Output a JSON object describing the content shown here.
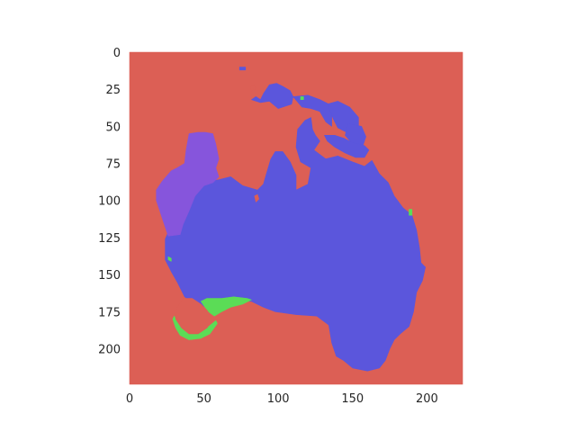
{
  "chart_data": {
    "type": "heatmap",
    "title": "",
    "xlabel": "",
    "ylabel": "",
    "xlim": [
      0,
      224
    ],
    "ylim": [
      224,
      0
    ],
    "x_ticks": [
      0,
      50,
      100,
      150,
      200
    ],
    "y_ticks": [
      0,
      25,
      50,
      75,
      100,
      125,
      150,
      175,
      200
    ],
    "grid": false,
    "legend": "none",
    "colors": {
      "background": "#dc5f55",
      "mainland": "#5b56dc",
      "west": "#8655dc",
      "southwest": "#5bdc56"
    },
    "regions": [
      {
        "class": "background",
        "color": "#dc5f55",
        "polygons": [
          [
            [
              0,
              0
            ],
            [
              224,
              0
            ],
            [
              224,
              224
            ],
            [
              0,
              224
            ]
          ]
        ]
      },
      {
        "class": "mainland",
        "color": "#5b56dc",
        "polygons": [
          [
            [
              35,
              97
            ],
            [
              50,
              88
            ],
            [
              60,
              86
            ],
            [
              68,
              84
            ],
            [
              76,
              90
            ],
            [
              86,
              93
            ],
            [
              90,
              89
            ],
            [
              92,
              82
            ],
            [
              95,
              72
            ],
            [
              98,
              67
            ],
            [
              103,
              67
            ],
            [
              108,
              74
            ],
            [
              112,
              83
            ],
            [
              112,
              93
            ],
            [
              120,
              89
            ],
            [
              122,
              78
            ],
            [
              115,
              74
            ],
            [
              112,
              64
            ],
            [
              113,
              52
            ],
            [
              118,
              46
            ],
            [
              122,
              44
            ],
            [
              123,
              52
            ],
            [
              125,
              56
            ],
            [
              128,
              60
            ],
            [
              124,
              66
            ],
            [
              132,
              72
            ],
            [
              140,
              70
            ],
            [
              150,
              74
            ],
            [
              158,
              77
            ],
            [
              163,
              73
            ],
            [
              168,
              82
            ],
            [
              174,
              88
            ],
            [
              178,
              97
            ],
            [
              184,
              105
            ],
            [
              190,
              110
            ],
            [
              193,
              120
            ],
            [
              195,
              132
            ],
            [
              196,
              142
            ],
            [
              199,
              145
            ],
            [
              197,
              154
            ],
            [
              193,
              162
            ],
            [
              191,
              175
            ],
            [
              188,
              185
            ],
            [
              182,
              190
            ],
            [
              178,
              194
            ],
            [
              175,
              200
            ],
            [
              172,
              208
            ],
            [
              168,
              213
            ],
            [
              160,
              215
            ],
            [
              150,
              213
            ],
            [
              144,
              208
            ],
            [
              139,
              205
            ],
            [
              136,
              196
            ],
            [
              134,
              184
            ],
            [
              126,
              178
            ],
            [
              112,
              177
            ],
            [
              98,
              175
            ],
            [
              90,
              172
            ],
            [
              82,
              168
            ],
            [
              68,
              167
            ],
            [
              58,
              167
            ],
            [
              53,
              171
            ],
            [
              47,
              172
            ],
            [
              37,
              165
            ],
            [
              32,
              155
            ],
            [
              28,
              148
            ],
            [
              24,
              140
            ],
            [
              24,
              126
            ],
            [
              30,
              112
            ],
            [
              36,
              100
            ]
          ],
          [
            [
              82,
              32
            ],
            [
              85,
              30
            ],
            [
              88,
              32
            ],
            [
              90,
              28
            ],
            [
              94,
              22
            ],
            [
              99,
              21
            ],
            [
              103,
              23
            ],
            [
              108,
              26
            ],
            [
              110,
              30
            ],
            [
              109,
              35
            ],
            [
              100,
              38
            ],
            [
              94,
              33
            ],
            [
              88,
              34
            ]
          ],
          [
            [
              110,
              30
            ],
            [
              120,
              29
            ],
            [
              128,
              32
            ],
            [
              134,
              35
            ],
            [
              136,
              41
            ],
            [
              136,
              50
            ],
            [
              132,
              47
            ],
            [
              128,
              40
            ],
            [
              122,
              38
            ],
            [
              116,
              37
            ]
          ],
          [
            [
              133,
              35
            ],
            [
              140,
              33
            ],
            [
              148,
              37
            ],
            [
              154,
              44
            ],
            [
              154,
              52
            ],
            [
              146,
              54
            ],
            [
              140,
              51
            ],
            [
              137,
              45
            ]
          ],
          [
            [
              147,
              48
            ],
            [
              156,
              50
            ],
            [
              159,
              57
            ],
            [
              157,
              63
            ],
            [
              150,
              62
            ],
            [
              145,
              56
            ]
          ],
          [
            [
              131,
              56
            ],
            [
              138,
              56
            ],
            [
              144,
              58
            ],
            [
              150,
              61
            ],
            [
              158,
              63
            ],
            [
              161,
              66
            ],
            [
              158,
              71
            ],
            [
              152,
              71
            ],
            [
              145,
              68
            ],
            [
              138,
              64
            ],
            [
              133,
              60
            ]
          ],
          [
            [
              74,
              10
            ],
            [
              78,
              10
            ],
            [
              78,
              12
            ],
            [
              74,
              12
            ]
          ]
        ]
      },
      {
        "class": "west",
        "color": "#8655dc",
        "polygons": [
          [
            [
              40,
              55
            ],
            [
              46,
              54
            ],
            [
              51,
              54
            ],
            [
              56,
              55
            ],
            [
              58,
              62
            ],
            [
              60,
              72
            ],
            [
              58,
              78
            ],
            [
              60,
              84
            ],
            [
              56,
              88
            ],
            [
              50,
              90
            ],
            [
              44,
              97
            ],
            [
              40,
              107
            ],
            [
              36,
              116
            ],
            [
              34,
              123
            ],
            [
              26,
              124
            ],
            [
              22,
              112
            ],
            [
              18,
              100
            ],
            [
              18,
              93
            ],
            [
              22,
              87
            ],
            [
              28,
              80
            ],
            [
              32,
              78
            ],
            [
              37,
              75
            ],
            [
              38,
              66
            ]
          ]
        ]
      },
      {
        "class": "southwest",
        "color": "#5bdc56",
        "polygons": [
          [
            [
              48,
              168
            ],
            [
              52,
              166
            ],
            [
              55,
              166
            ],
            [
              62,
              166
            ],
            [
              70,
              165
            ],
            [
              79,
              166
            ],
            [
              82,
              167
            ],
            [
              76,
              170
            ],
            [
              68,
              172
            ],
            [
              62,
              175
            ],
            [
              57,
              178
            ],
            [
              53,
              175
            ],
            [
              50,
              171
            ]
          ],
          [
            [
              30,
              178
            ],
            [
              31,
              180
            ],
            [
              35,
              186
            ],
            [
              40,
              190
            ],
            [
              46,
              190
            ],
            [
              52,
              186
            ],
            [
              58,
              181
            ],
            [
              59,
              183
            ],
            [
              54,
              190
            ],
            [
              48,
              193
            ],
            [
              40,
              194
            ],
            [
              34,
              191
            ],
            [
              31,
              186
            ],
            [
              29,
              180
            ]
          ],
          [
            [
              26,
              138
            ],
            [
              28,
              139
            ],
            [
              28,
              141
            ],
            [
              26,
              140
            ]
          ],
          [
            [
              188,
              106
            ],
            [
              190,
              106
            ],
            [
              190,
              110
            ],
            [
              188,
              110
            ]
          ],
          [
            [
              115,
              30
            ],
            [
              117,
              30
            ],
            [
              117,
              32
            ],
            [
              115,
              32
            ]
          ]
        ]
      },
      {
        "class": "background",
        "color": "#dc5f55",
        "polygons": [
          [
            [
              36,
              166
            ],
            [
              42,
              166
            ],
            [
              48,
              170
            ],
            [
              52,
              174
            ],
            [
              56,
              180
            ],
            [
              52,
              186
            ],
            [
              46,
              190
            ],
            [
              40,
              190
            ],
            [
              35,
              186
            ],
            [
              31,
              180
            ],
            [
              32,
              172
            ]
          ],
          [
            [
              84,
              97
            ],
            [
              86,
              96
            ],
            [
              87,
              99
            ],
            [
              85,
              101
            ]
          ],
          [
            [
              81,
              23
            ],
            [
              84,
              22
            ],
            [
              85,
              25
            ],
            [
              82,
              26
            ]
          ]
        ]
      }
    ]
  }
}
